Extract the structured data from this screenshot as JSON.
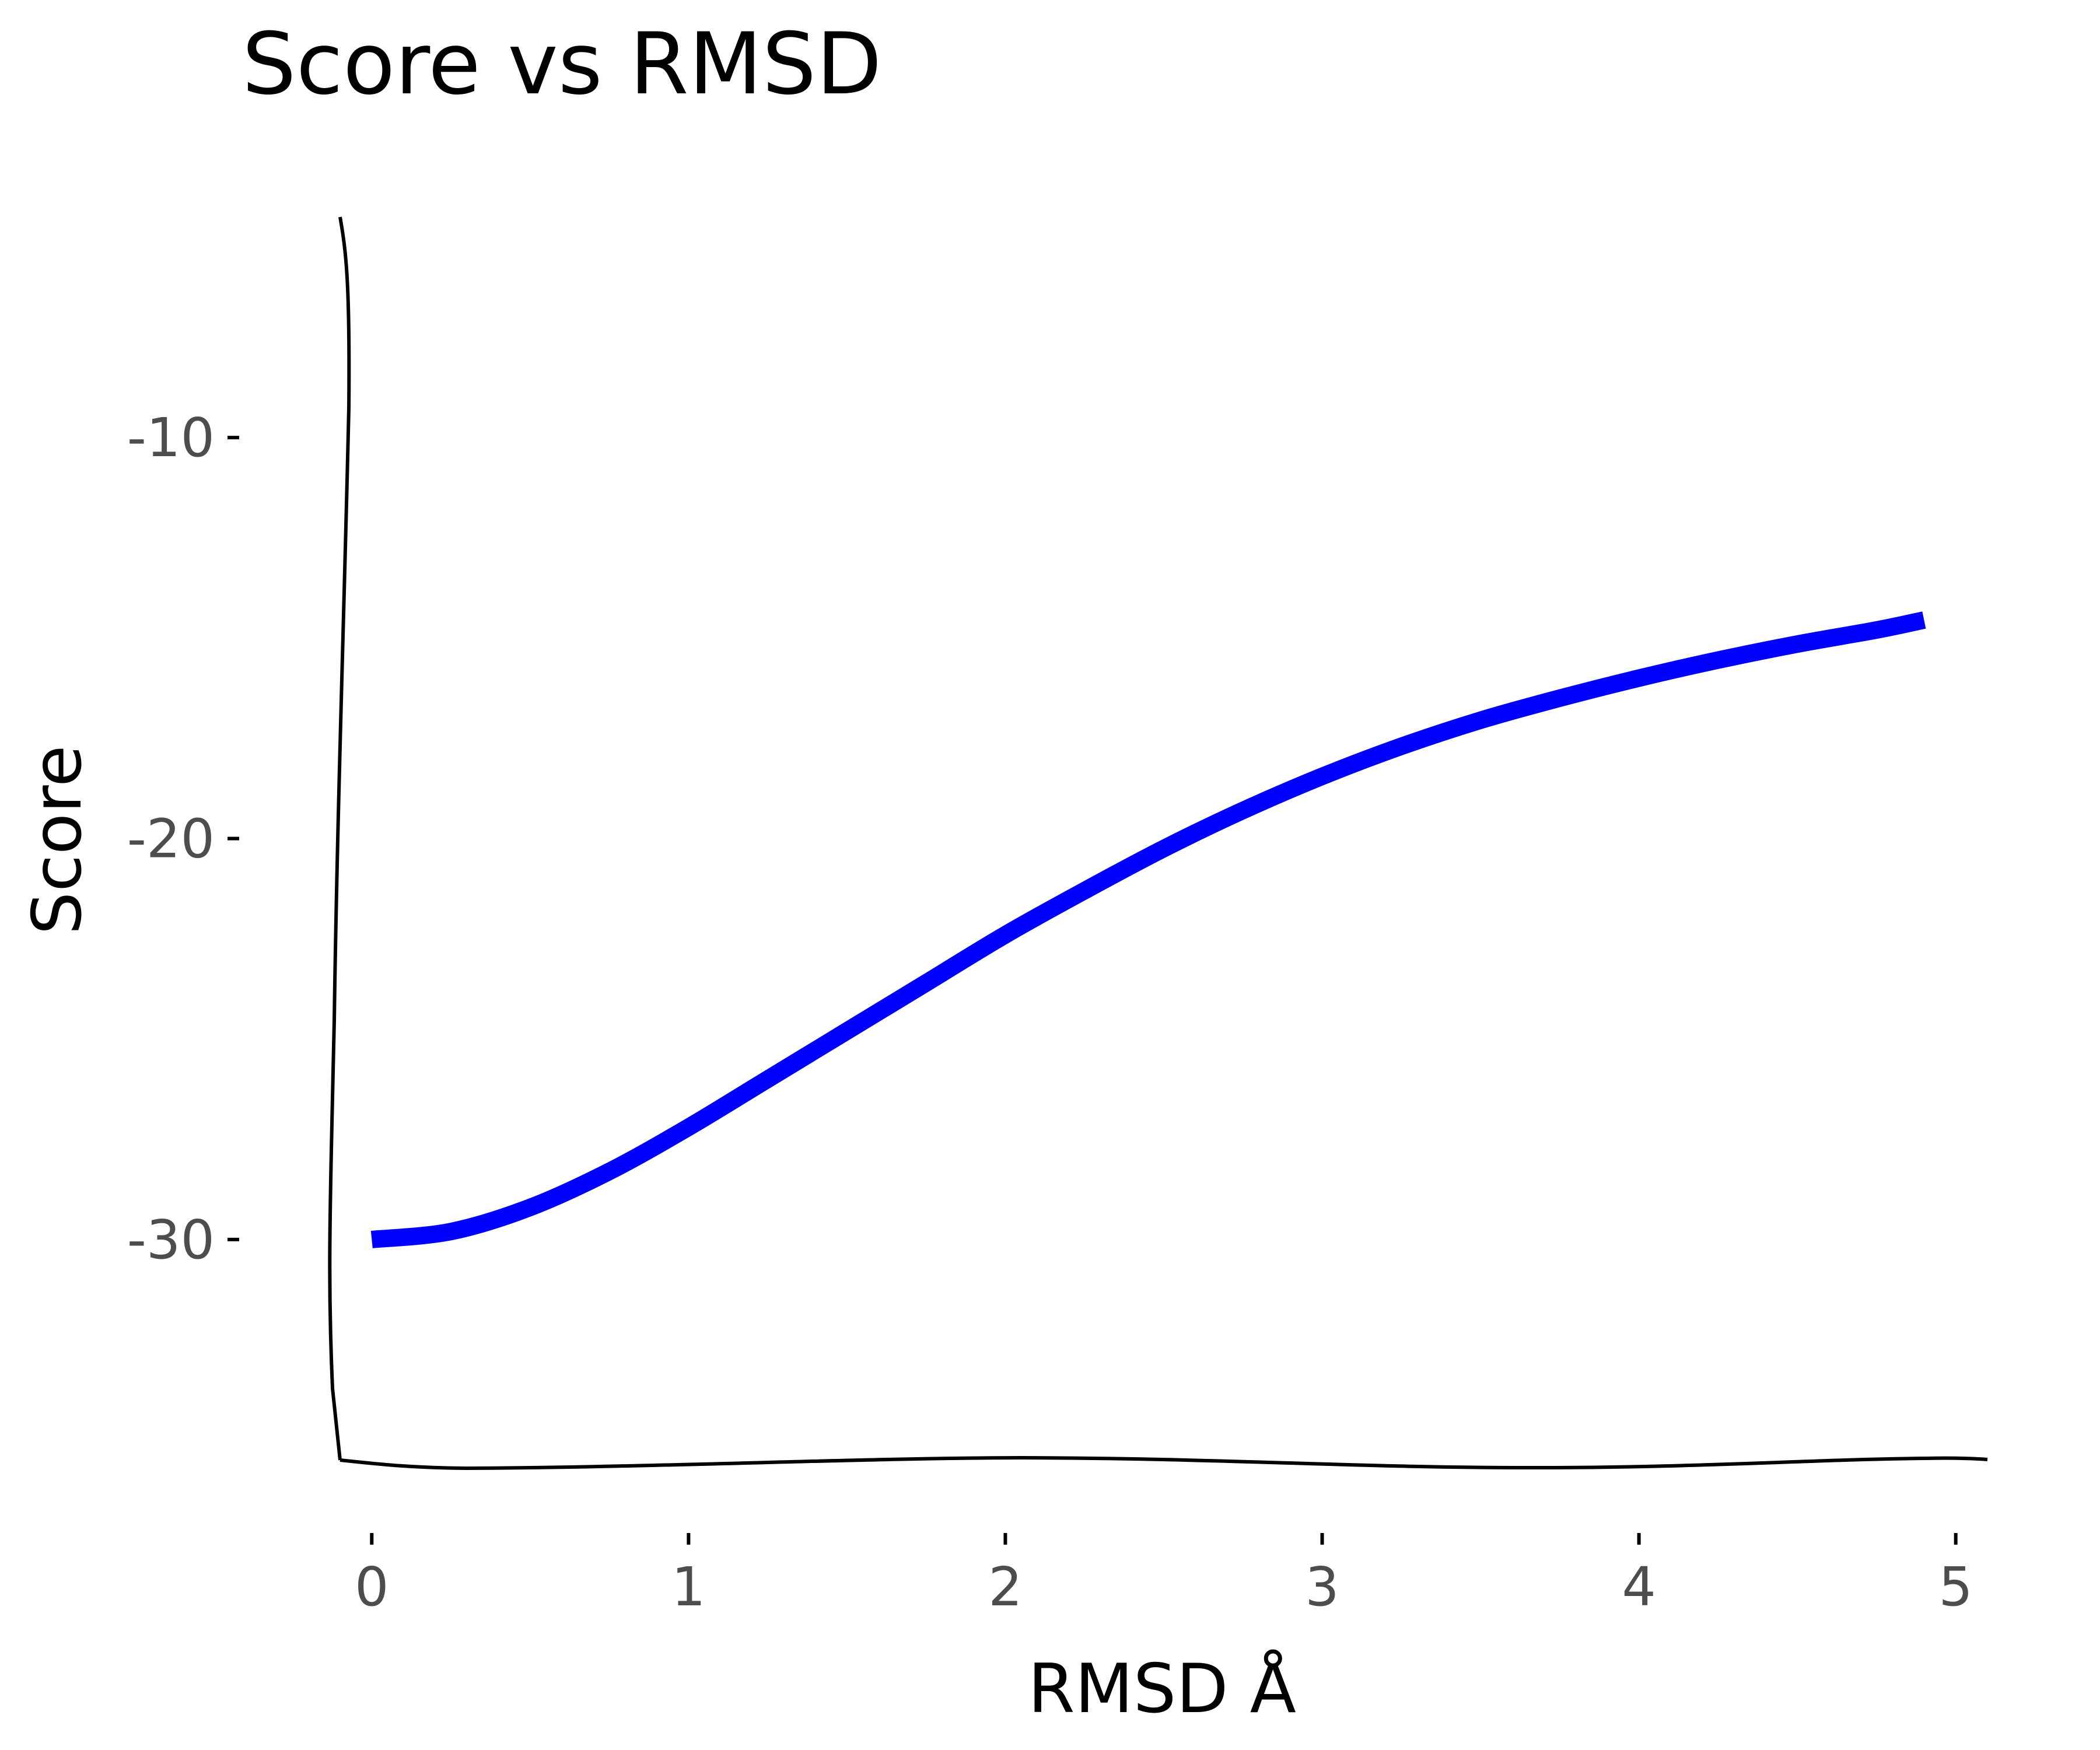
{
  "chart_data": {
    "type": "line",
    "title": "Score vs RMSD",
    "xlabel": "RMSD Å",
    "ylabel": "Score",
    "xlim": [
      -0.1,
      5.1
    ],
    "ylim": [
      -35.5,
      -4.5
    ],
    "x_ticks": [
      0,
      1,
      2,
      3,
      4,
      5
    ],
    "y_ticks": [
      -30,
      -20,
      -10
    ],
    "x_tick_labels": [
      "0",
      "1",
      "2",
      "3",
      "4",
      "5"
    ],
    "y_tick_labels": [
      "-30",
      "-20",
      "-10"
    ],
    "grid": false,
    "legend": "none",
    "series": [
      {
        "color": "#0000ff",
        "x": [
          0,
          0.25,
          0.5,
          0.75,
          1.0,
          1.25,
          1.5,
          1.75,
          2.0,
          2.25,
          2.5,
          2.75,
          3.0,
          3.25,
          3.5,
          3.75,
          4.0,
          4.25,
          4.5,
          4.75,
          4.9
        ],
        "y": [
          -30.0,
          -29.8,
          -29.2,
          -28.3,
          -27.2,
          -26.0,
          -24.8,
          -23.6,
          -22.4,
          -21.3,
          -20.25,
          -19.3,
          -18.45,
          -17.7,
          -17.05,
          -16.5,
          -16.0,
          -15.55,
          -15.15,
          -14.8,
          -14.55
        ]
      }
    ]
  }
}
